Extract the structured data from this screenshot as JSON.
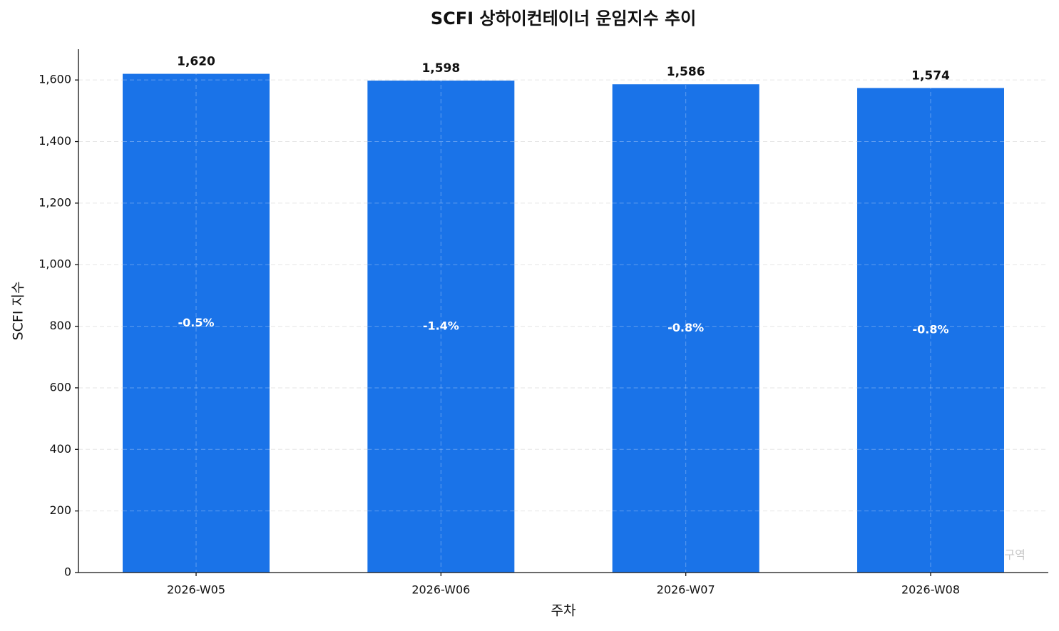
{
  "chart_data": {
    "type": "bar",
    "title": "SCFI 상하이컨테이너 운임지수 추이",
    "x_label": "주차",
    "y_label": "SCFI 지수",
    "categories": [
      "2026-W05",
      "2026-W06",
      "2026-W07",
      "2026-W08"
    ],
    "values": [
      1620,
      1598,
      1586,
      1574
    ],
    "value_labels": [
      "1,620",
      "1,598",
      "1,586",
      "1,574"
    ],
    "change_labels": [
      "-0.5%",
      "-1.4%",
      "-0.8%",
      "-0.8%"
    ],
    "color": "#1a73e8",
    "ylim": [
      0,
      1700
    ],
    "yticks": [
      0,
      200,
      400,
      600,
      800,
      {
        "value": 1000,
        "label": "1,000"
      },
      {
        "value": 1200,
        "label": "1,200"
      },
      {
        "value": 1400,
        "label": "1,400"
      },
      {
        "value": 1600,
        "label": "1,600"
      }
    ],
    "grid": true,
    "watermark": "SE구역"
  }
}
